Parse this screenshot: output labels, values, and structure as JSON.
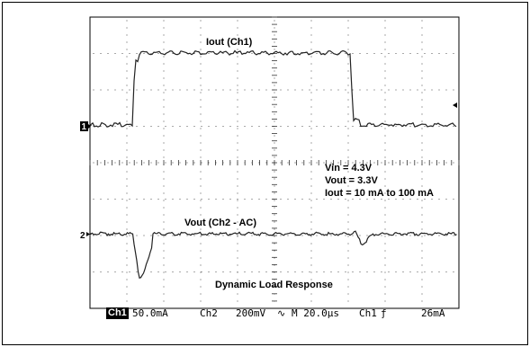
{
  "trace_labels": {
    "ch1": "Iout (Ch1)",
    "ch2": "Vout (Ch2 - AC)",
    "footer": "Dynamic Load Response"
  },
  "conditions": {
    "vin": "Vin = 4.3V",
    "vout": "Vout = 3.3V",
    "iout": "Iout = 10 mA to 100 mA"
  },
  "markers": {
    "ch1": "1",
    "ch2": "2"
  },
  "status_bar": {
    "ch1_tag": "Ch1",
    "ch1_scale": "50.0mA",
    "ch2_label": "Ch2",
    "ch2_scale": "200mV",
    "timebase": "M 20.0µs",
    "trigger": "Ch1",
    "trigger_level": "26mA"
  },
  "icons": {
    "coupling": "ac-coupling-icon",
    "trigger_slope": "rising-edge-icon",
    "trigger_pointer": "trigger-arrow-icon"
  }
}
